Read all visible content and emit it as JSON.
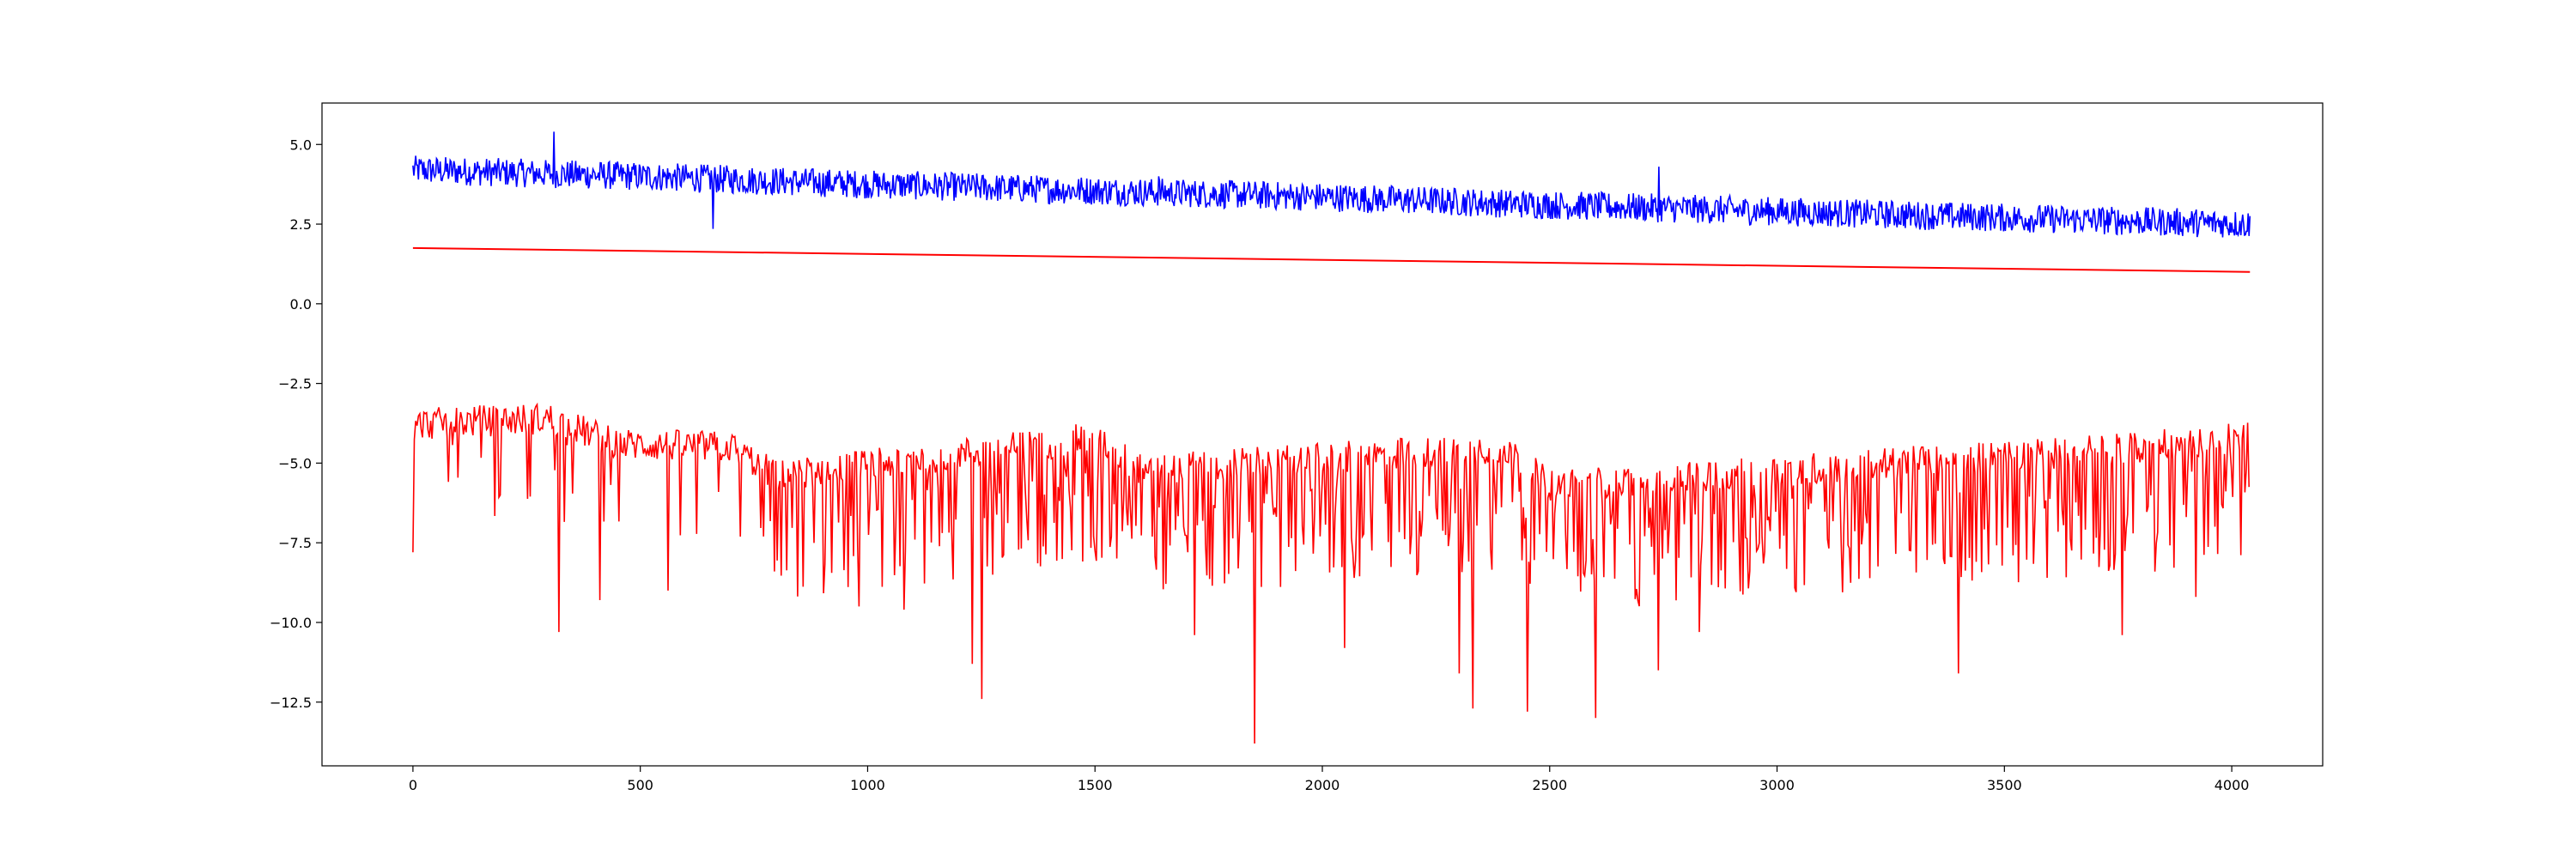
{
  "chart_data": {
    "type": "line",
    "title": "",
    "xlabel": "",
    "ylabel": "",
    "xlim": [
      -200,
      4200
    ],
    "ylim": [
      -14.5,
      6.3
    ],
    "grid": false,
    "legend": "none",
    "xticks": [
      0,
      500,
      1000,
      1500,
      2000,
      2500,
      3000,
      3500,
      4000
    ],
    "yticks": [
      5.0,
      2.5,
      0.0,
      -2.5,
      -5.0,
      -7.5,
      -10.0,
      -12.5
    ],
    "xtick_labels": [
      "0",
      "500",
      "1000",
      "1500",
      "2000",
      "2500",
      "3000",
      "3500",
      "4000"
    ],
    "ytick_labels": [
      "5.0",
      "2.5",
      "0.0",
      "−2.5",
      "−5.0",
      "−7.5",
      "−10.0",
      "−12.5"
    ],
    "series": [
      {
        "color": "#0000ff",
        "x_start": 0,
        "x_end": 4040,
        "trend": [
          [
            0,
            4.2
          ],
          [
            500,
            4.0
          ],
          [
            1000,
            3.75
          ],
          [
            1500,
            3.55
          ],
          [
            2000,
            3.35
          ],
          [
            2500,
            3.1
          ],
          [
            3000,
            2.9
          ],
          [
            3500,
            2.7
          ],
          [
            4040,
            2.5
          ]
        ],
        "noise_amplitude": 0.45,
        "spikes": [
          [
            310,
            5.4
          ],
          [
            660,
            2.35
          ],
          [
            2740,
            4.3
          ],
          [
            1640,
            4.0
          ]
        ]
      },
      {
        "color": "#ff0000",
        "x_start": 0,
        "x_end": 4040,
        "values_at_ends": [
          1.75,
          1.0
        ],
        "trend": [
          [
            0,
            1.75
          ],
          [
            4040,
            1.0
          ]
        ]
      },
      {
        "color": "#ff0000",
        "x_start": 0,
        "x_end": 4040,
        "baseline": [
          [
            0,
            -3.6
          ],
          [
            100,
            -3.5
          ],
          [
            300,
            -3.4
          ],
          [
            450,
            -4.2
          ],
          [
            700,
            -4.3
          ],
          [
            800,
            -5.2
          ],
          [
            1500,
            -4.0
          ],
          [
            1600,
            -5.0
          ],
          [
            2400,
            -4.3
          ],
          [
            2500,
            -5.5
          ],
          [
            3800,
            -4.3
          ],
          [
            4040,
            -4.0
          ]
        ],
        "dips": [
          [
            0,
            -7.8
          ],
          [
            320,
            -10.3
          ],
          [
            410,
            -9.3
          ],
          [
            560,
            -9.0
          ],
          [
            980,
            -9.5
          ],
          [
            1230,
            -11.3
          ],
          [
            1250,
            -12.4
          ],
          [
            1850,
            -13.8
          ],
          [
            1720,
            -10.4
          ],
          [
            2050,
            -10.8
          ],
          [
            2300,
            -11.6
          ],
          [
            2330,
            -12.7
          ],
          [
            2450,
            -12.8
          ],
          [
            2600,
            -13.0
          ],
          [
            2740,
            -11.5
          ],
          [
            2830,
            -10.3
          ],
          [
            3400,
            -11.6
          ],
          [
            3760,
            -10.4
          ],
          [
            3920,
            -9.2
          ],
          [
            1080,
            -9.6
          ]
        ]
      }
    ]
  }
}
